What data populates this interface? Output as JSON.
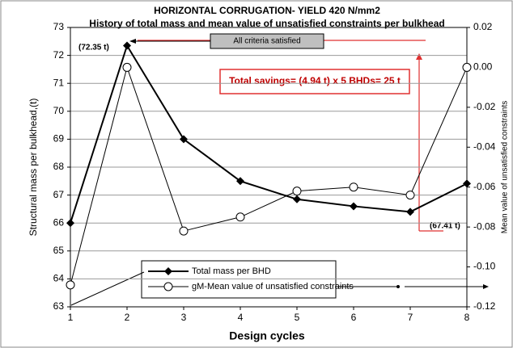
{
  "chart_data": {
    "type": "line",
    "title": "HORIZONTAL CORRUGATION- YIELD 420 N/mm2",
    "subtitle": "History of total mass and mean value of unsatisfied constraints per bulkhead",
    "x_label": "Design cycles",
    "y_label": "Structural mass per bulkhead,(t)",
    "y2_label": "Mean value of unsatisfied constraints",
    "x": [
      1,
      2,
      3,
      4,
      5,
      6,
      7,
      8
    ],
    "xlim": [
      1,
      8
    ],
    "xticks": [
      1,
      2,
      3,
      4,
      5,
      6,
      7,
      8
    ],
    "ylim": [
      63,
      73
    ],
    "yticks": [
      63,
      64,
      65,
      66,
      67,
      68,
      69,
      70,
      71,
      72,
      73
    ],
    "y2lim": [
      -0.12,
      0.02
    ],
    "y2ticks": [
      -0.12,
      {
        "value": -0.1,
        "label": "-0.10"
      },
      -0.08,
      -0.06,
      -0.04,
      -0.02,
      {
        "value": 0,
        "label": "0.00"
      },
      0.02
    ],
    "grid": true,
    "series": [
      {
        "name": "Total mass per BHD",
        "color": "#000000",
        "marker": "diamond",
        "values": [
          66.0,
          72.35,
          69.0,
          67.5,
          66.85,
          66.6,
          66.4,
          67.41
        ]
      },
      {
        "name": "gM-Mean value of unsatisfied constraints",
        "color": "#000000",
        "marker": "circle",
        "axis": "y2",
        "values": [
          -0.109,
          0.0,
          -0.082,
          -0.075,
          -0.062,
          -0.06,
          -0.064,
          0.0
        ]
      }
    ],
    "annotations": [
      "(72.35 t)",
      "(67.41 t)",
      "All criteria satisfied",
      "Total savings= (4.94 t) x 5 BHDs= 25 t"
    ]
  }
}
